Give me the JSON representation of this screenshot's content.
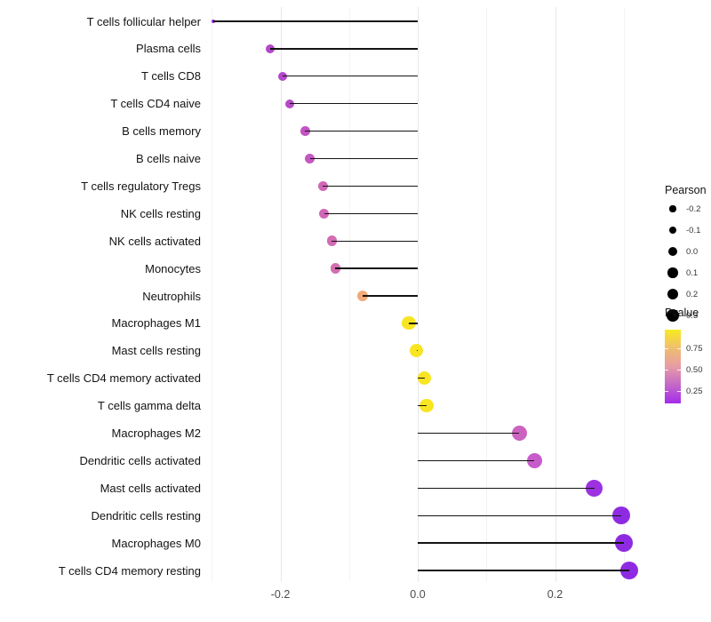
{
  "chart_data": {
    "type": "lollipop",
    "title": "",
    "xlabel": "",
    "ylabel": "",
    "grid": "vertical-only",
    "x_axis": {
      "tick_labels": [
        "-0.2",
        "0.0",
        "0.2"
      ],
      "tick_values": [
        -0.2,
        0.0,
        0.2
      ],
      "minor_gridline_values": [
        -0.3,
        -0.1,
        0.1,
        0.3
      ],
      "xlim": [
        -0.31,
        0.32
      ]
    },
    "categories": [
      "T cells follicular helper",
      "Plasma cells",
      "T cells CD8",
      "T cells CD4 naive",
      "B cells memory",
      "B cells naive",
      "T cells regulatory  Tregs",
      "NK cells resting",
      "NK cells activated",
      "Monocytes",
      "Neutrophils",
      "Macrophages M1",
      "Mast cells resting",
      "T cells CD4 memory activated",
      "T cells gamma delta",
      "Macrophages M2",
      "Dendritic cells activated",
      "Mast cells activated",
      "Dendritic cells resting",
      "Macrophages M0",
      "T cells CD4 memory resting"
    ],
    "rows": [
      {
        "label": "T cells follicular helper",
        "pearson": -0.298,
        "dot_color": "#9b2be0",
        "dot_radius": 2.2
      },
      {
        "label": "Plasma cells",
        "pearson": -0.215,
        "dot_color": "#b347cb",
        "dot_radius": 5.0
      },
      {
        "label": "T cells CD8",
        "pearson": -0.197,
        "dot_color": "#b347cb",
        "dot_radius": 5.0
      },
      {
        "label": "T cells CD4 naive",
        "pearson": -0.186,
        "dot_color": "#b84bc8",
        "dot_radius": 5.2
      },
      {
        "label": "B cells memory",
        "pearson": -0.164,
        "dot_color": "#c254c2",
        "dot_radius": 5.4
      },
      {
        "label": "B cells naive",
        "pearson": -0.157,
        "dot_color": "#c458c0",
        "dot_radius": 5.5
      },
      {
        "label": "T cells regulatory  Tregs",
        "pearson": -0.138,
        "dot_color": "#d066b6",
        "dot_radius": 5.6
      },
      {
        "label": "NK cells resting",
        "pearson": -0.136,
        "dot_color": "#d066b6",
        "dot_radius": 5.6
      },
      {
        "label": "NK cells activated",
        "pearson": -0.125,
        "dot_color": "#d36bb2",
        "dot_radius": 5.8
      },
      {
        "label": "Monocytes",
        "pearson": -0.12,
        "dot_color": "#d46eb0",
        "dot_radius": 5.8
      },
      {
        "label": "Neutrophils",
        "pearson": -0.08,
        "dot_color": "#f0ab79",
        "dot_radius": 6.3
      },
      {
        "label": "Macrophages M1",
        "pearson": -0.013,
        "dot_color": "#f8e521",
        "dot_radius": 7.6
      },
      {
        "label": "Mast cells resting",
        "pearson": -0.002,
        "dot_color": "#f8e521",
        "dot_radius": 7.6
      },
      {
        "label": "T cells CD4 memory activated",
        "pearson": 0.01,
        "dot_color": "#f8e521",
        "dot_radius": 7.7
      },
      {
        "label": "T cells gamma delta",
        "pearson": 0.013,
        "dot_color": "#f8e521",
        "dot_radius": 7.7
      },
      {
        "label": "Macrophages M2",
        "pearson": 0.148,
        "dot_color": "#cc63c0",
        "dot_radius": 8.5
      },
      {
        "label": "Dendritic cells activated",
        "pearson": 0.17,
        "dot_color": "#c75bcb",
        "dot_radius": 8.7
      },
      {
        "label": "Mast cells activated",
        "pearson": 0.257,
        "dot_color": "#9c32e0",
        "dot_radius": 9.4
      },
      {
        "label": "Dendritic cells resting",
        "pearson": 0.297,
        "dot_color": "#8e2be2",
        "dot_radius": 10.0
      },
      {
        "label": "Macrophages M0",
        "pearson": 0.3,
        "dot_color": "#8e2be2",
        "dot_radius": 10.0
      },
      {
        "label": "T cells CD4 memory resting",
        "pearson": 0.308,
        "dot_color": "#8e2be2",
        "dot_radius": 10.3
      }
    ],
    "legend_size": {
      "title": "Pearson",
      "entries": [
        {
          "label": "-0.2",
          "radius": 3.6
        },
        {
          "label": "-0.1",
          "radius": 4.3
        },
        {
          "label": "0.0",
          "radius": 5.0
        },
        {
          "label": "0.1",
          "radius": 5.7
        },
        {
          "label": "0.2",
          "radius": 6.3
        },
        {
          "label": "0.3",
          "radius": 6.9
        }
      ]
    },
    "legend_color": {
      "title": "Pvalue",
      "tick_labels": [
        "0.75",
        "0.50",
        "0.25"
      ],
      "gradient_stops_top_to_bottom": [
        "#f8eb20",
        "#efbe70",
        "#e79ba4",
        "#c468ca",
        "#a52be8"
      ]
    },
    "colors": {
      "stem": "#141414",
      "gridline_major": "#e7e7e7",
      "gridline_minor": "#f3f3f3"
    }
  }
}
